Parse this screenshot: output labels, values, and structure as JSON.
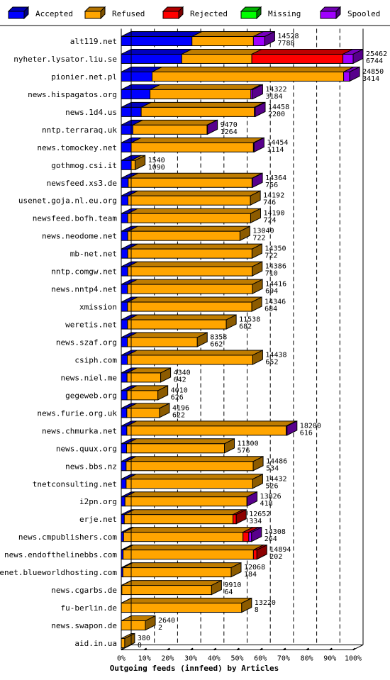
{
  "chart_data": {
    "type": "bar",
    "orientation": "horizontal",
    "stacked": true,
    "title": "Outgoing feeds (innfeed) by Articles",
    "xlabel": "Outgoing feeds (innfeed) by Articles",
    "ylabel": "",
    "xlim": [
      0,
      100
    ],
    "x_ticks": [
      "0%",
      "10%",
      "20%",
      "30%",
      "40%",
      "50%",
      "60%",
      "70%",
      "80%",
      "90%",
      "100%"
    ],
    "legend_position": "top",
    "legend": [
      {
        "name": "Accepted",
        "color": "#0000ff"
      },
      {
        "name": "Refused",
        "color": "#ffa500"
      },
      {
        "name": "Rejected",
        "color": "#ff0000"
      },
      {
        "name": "Missing",
        "color": "#00ff00"
      },
      {
        "name": "Spooled",
        "color": "#a000ff"
      }
    ],
    "rows": [
      {
        "label": "alt119.net",
        "total": "14528",
        "second": "7788",
        "segments": [
          30.5,
          26.5,
          0,
          0,
          4.9
        ]
      },
      {
        "label": "nyheter.lysator.liu.se",
        "total": "25462",
        "second": "6744",
        "segments": [
          26.1,
          30.2,
          39.3,
          0,
          4.4
        ]
      },
      {
        "label": "pionier.net.pl",
        "total": "24850",
        "second": "3414",
        "segments": [
          13.3,
          82.6,
          0,
          0,
          2.6
        ]
      },
      {
        "label": "news.hispagatos.org",
        "total": "14322",
        "second": "3184",
        "segments": [
          12.4,
          43.5,
          0,
          0,
          0.8
        ]
      },
      {
        "label": "news.1d4.us",
        "total": "14458",
        "second": "2200",
        "segments": [
          8.6,
          48.8,
          0,
          0,
          0.4
        ]
      },
      {
        "label": "nntp.terraraq.uk",
        "total": "9470",
        "second": "1264",
        "segments": [
          5,
          32,
          0,
          0,
          0.2
        ]
      },
      {
        "label": "news.tomockey.net",
        "total": "14454",
        "second": "1114",
        "segments": [
          4.3,
          52.7,
          0,
          0,
          0.3
        ]
      },
      {
        "label": "gothmog.csi.it",
        "total": "1540",
        "second": "1090",
        "segments": [
          4.3,
          1.7,
          0,
          0,
          0
        ]
      },
      {
        "label": "newsfeed.xs3.de",
        "total": "14364",
        "second": "756",
        "segments": [
          3,
          53.4,
          0,
          0,
          0.2
        ]
      },
      {
        "label": "usenet.goja.nl.eu.org",
        "total": "14192",
        "second": "746",
        "segments": [
          2.9,
          52.8,
          0,
          0,
          0
        ]
      },
      {
        "label": "newsfeed.bofh.team",
        "total": "14190",
        "second": "724",
        "segments": [
          2.8,
          53,
          0,
          0,
          0
        ]
      },
      {
        "label": "news.neodome.net",
        "total": "13040",
        "second": "722",
        "segments": [
          2.8,
          48.4,
          0,
          0,
          0
        ]
      },
      {
        "label": "mb-net.net",
        "total": "14350",
        "second": "722",
        "segments": [
          2.8,
          53.6,
          0,
          0,
          0
        ]
      },
      {
        "label": "nntp.comgw.net",
        "total": "14386",
        "second": "710",
        "segments": [
          2.8,
          53.7,
          0,
          0,
          0
        ]
      },
      {
        "label": "news.nntp4.net",
        "total": "14416",
        "second": "694",
        "segments": [
          2.7,
          53.9,
          0,
          0,
          0
        ]
      },
      {
        "label": "xmission",
        "total": "14346",
        "second": "684",
        "segments": [
          2.7,
          53.6,
          0,
          0,
          0
        ]
      },
      {
        "label": "weretis.net",
        "total": "11538",
        "second": "682",
        "segments": [
          2.7,
          42.6,
          0,
          0,
          0
        ]
      },
      {
        "label": "news.szaf.org",
        "total": "8358",
        "second": "662",
        "segments": [
          2.6,
          30.2,
          0,
          0,
          0
        ]
      },
      {
        "label": "csiph.com",
        "total": "14438",
        "second": "652",
        "segments": [
          2.6,
          54.1,
          0,
          0,
          0
        ]
      },
      {
        "label": "news.niel.me",
        "total": "4340",
        "second": "642",
        "segments": [
          2.5,
          14.5,
          0,
          0,
          0
        ]
      },
      {
        "label": "gegeweb.org",
        "total": "4010",
        "second": "626",
        "segments": [
          2.5,
          13.3,
          0,
          0,
          0
        ]
      },
      {
        "label": "news.furie.org.uk",
        "total": "4196",
        "second": "622",
        "segments": [
          2.4,
          14.1,
          0,
          0,
          0
        ]
      },
      {
        "label": "news.chmurka.net",
        "total": "18200",
        "second": "616",
        "segments": [
          2.4,
          68.7,
          0,
          0,
          0.4
        ]
      },
      {
        "label": "news.quux.org",
        "total": "11300",
        "second": "576",
        "segments": [
          2.3,
          42.2,
          0,
          0,
          0
        ]
      },
      {
        "label": "news.bbs.nz",
        "total": "14486",
        "second": "534",
        "segments": [
          2.1,
          54.8,
          0,
          0,
          0
        ]
      },
      {
        "label": "tnetconsulting.net",
        "total": "14432",
        "second": "526",
        "segments": [
          2.1,
          54.6,
          0,
          0,
          0
        ]
      },
      {
        "label": "i2pn.org",
        "total": "13826",
        "second": "418",
        "segments": [
          1.6,
          52.6,
          0,
          0,
          0.1
        ]
      },
      {
        "label": "erje.net",
        "total": "12652",
        "second": "334",
        "segments": [
          1.3,
          46.9,
          1.4,
          0,
          0
        ]
      },
      {
        "label": "news.cmpublishers.com",
        "total": "14308",
        "second": "264",
        "segments": [
          1,
          51.5,
          2.5,
          0,
          1.2
        ]
      },
      {
        "label": "news.endofthelinebbs.com",
        "total": "14894",
        "second": "202",
        "segments": [
          0.8,
          56.2,
          1.5,
          0,
          0
        ]
      },
      {
        "label": "usenet.blueworldhosting.com",
        "total": "12068",
        "second": "184",
        "segments": [
          0.7,
          46.7,
          0,
          0,
          0
        ]
      },
      {
        "label": "news.cgarbs.de",
        "total": "9910",
        "second": "64",
        "segments": [
          0.25,
          38.7,
          0,
          0,
          0
        ]
      },
      {
        "label": "fu-berlin.de",
        "total": "13220",
        "second": "8",
        "segments": [
          0.03,
          51.9,
          0,
          0,
          0
        ]
      },
      {
        "label": "news.swapon.de",
        "total": "2640",
        "second": "2",
        "segments": [
          0,
          10.4,
          0,
          0,
          0
        ]
      },
      {
        "label": "aid.in.ua",
        "total": "380",
        "second": "0",
        "segments": [
          0,
          1.5,
          0,
          0,
          0
        ]
      }
    ]
  }
}
